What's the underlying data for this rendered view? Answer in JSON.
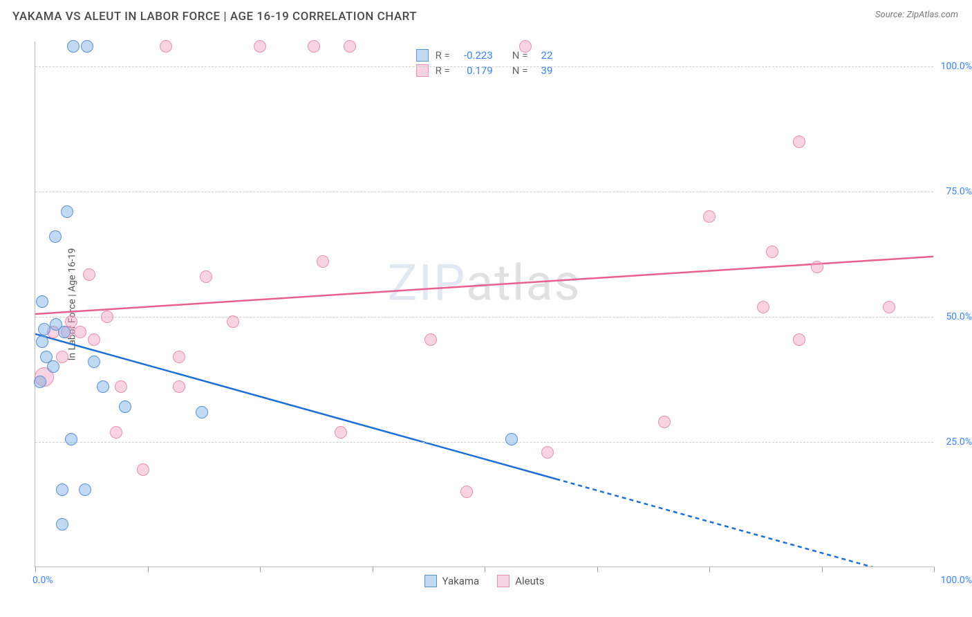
{
  "header": {
    "title": "YAKAMA VS ALEUT IN LABOR FORCE | AGE 16-19 CORRELATION CHART",
    "source_prefix": "Source: ",
    "source_name": "ZipAtlas.com"
  },
  "watermark": {
    "zip": "ZIP",
    "atlas": "atlas"
  },
  "chart": {
    "type": "scatter",
    "y_axis_title": "In Labor Force | Age 16-19",
    "xlim": [
      0,
      100
    ],
    "ylim": [
      0,
      105
    ],
    "y_gridlines": [
      25,
      50,
      75,
      100
    ],
    "y_tick_labels": [
      "25.0%",
      "50.0%",
      "75.0%",
      "100.0%"
    ],
    "x_ticks": [
      0,
      12.5,
      25,
      37.5,
      50,
      62.5,
      75,
      87.5,
      100
    ],
    "x_label_min": "0.0%",
    "x_label_max": "100.0%",
    "grid_color": "#cccccc",
    "axis_color": "#bbbbbb",
    "tick_label_color": "#3b82f6",
    "background_color": "#ffffff",
    "point_radius": 9,
    "series": {
      "yakama": {
        "label": "Yakama",
        "fill": "rgba(120,170,230,0.45)",
        "stroke": "#5b8fd6",
        "trend_color": "#1d6fd6",
        "R": "-0.223",
        "N": "22",
        "trend": {
          "x1": 0,
          "y1": 46.5,
          "x2": 58,
          "y2": 17.5,
          "x2_dash": 95,
          "y2_dash": -1
        },
        "points": [
          {
            "x": 4.2,
            "y": 104
          },
          {
            "x": 5.8,
            "y": 104
          },
          {
            "x": 3.5,
            "y": 71
          },
          {
            "x": 2.2,
            "y": 66
          },
          {
            "x": 0.8,
            "y": 53
          },
          {
            "x": 2.3,
            "y": 48.5
          },
          {
            "x": 1.0,
            "y": 47.5
          },
          {
            "x": 0.8,
            "y": 45
          },
          {
            "x": 3.2,
            "y": 47
          },
          {
            "x": 1.2,
            "y": 42
          },
          {
            "x": 2.0,
            "y": 40
          },
          {
            "x": 6.5,
            "y": 41
          },
          {
            "x": 0.5,
            "y": 37
          },
          {
            "x": 7.5,
            "y": 36
          },
          {
            "x": 10.0,
            "y": 32
          },
          {
            "x": 18.5,
            "y": 31
          },
          {
            "x": 4.0,
            "y": 25.5
          },
          {
            "x": 53.0,
            "y": 25.5
          },
          {
            "x": 3.0,
            "y": 15.5
          },
          {
            "x": 5.5,
            "y": 15.5
          },
          {
            "x": 3.0,
            "y": 8.5
          }
        ]
      },
      "aleuts": {
        "label": "Aleuts",
        "fill": "rgba(240,160,190,0.45)",
        "stroke": "#e88fb0",
        "trend_color": "#e85f90",
        "R": "0.179",
        "N": "39",
        "trend": {
          "x1": 0,
          "y1": 50.5,
          "x2": 100,
          "y2": 62
        },
        "points": [
          {
            "x": 14.5,
            "y": 104
          },
          {
            "x": 25.0,
            "y": 104
          },
          {
            "x": 31.0,
            "y": 104
          },
          {
            "x": 35.0,
            "y": 104
          },
          {
            "x": 54.5,
            "y": 104
          },
          {
            "x": 85.0,
            "y": 85
          },
          {
            "x": 75.0,
            "y": 70
          },
          {
            "x": 82.0,
            "y": 63
          },
          {
            "x": 87.0,
            "y": 60
          },
          {
            "x": 32.0,
            "y": 61
          },
          {
            "x": 6.0,
            "y": 58.5
          },
          {
            "x": 19.0,
            "y": 58
          },
          {
            "x": 81.0,
            "y": 52
          },
          {
            "x": 95.0,
            "y": 52
          },
          {
            "x": 4.0,
            "y": 49
          },
          {
            "x": 22.0,
            "y": 49
          },
          {
            "x": 8.0,
            "y": 50
          },
          {
            "x": 2.0,
            "y": 47
          },
          {
            "x": 3.5,
            "y": 47
          },
          {
            "x": 5.0,
            "y": 47
          },
          {
            "x": 6.5,
            "y": 45.5
          },
          {
            "x": 44.0,
            "y": 45.5
          },
          {
            "x": 85.0,
            "y": 45.5
          },
          {
            "x": 3.0,
            "y": 42
          },
          {
            "x": 16.0,
            "y": 42
          },
          {
            "x": 1.0,
            "y": 38,
            "r": 14
          },
          {
            "x": 9.5,
            "y": 36
          },
          {
            "x": 16.0,
            "y": 36
          },
          {
            "x": 70.0,
            "y": 29
          },
          {
            "x": 9.0,
            "y": 27
          },
          {
            "x": 34.0,
            "y": 27
          },
          {
            "x": 57.0,
            "y": 23
          },
          {
            "x": 12.0,
            "y": 19.5
          },
          {
            "x": 48.0,
            "y": 15
          }
        ]
      }
    },
    "stats_legend": {
      "r_label": "R =",
      "n_label": "N ="
    }
  }
}
